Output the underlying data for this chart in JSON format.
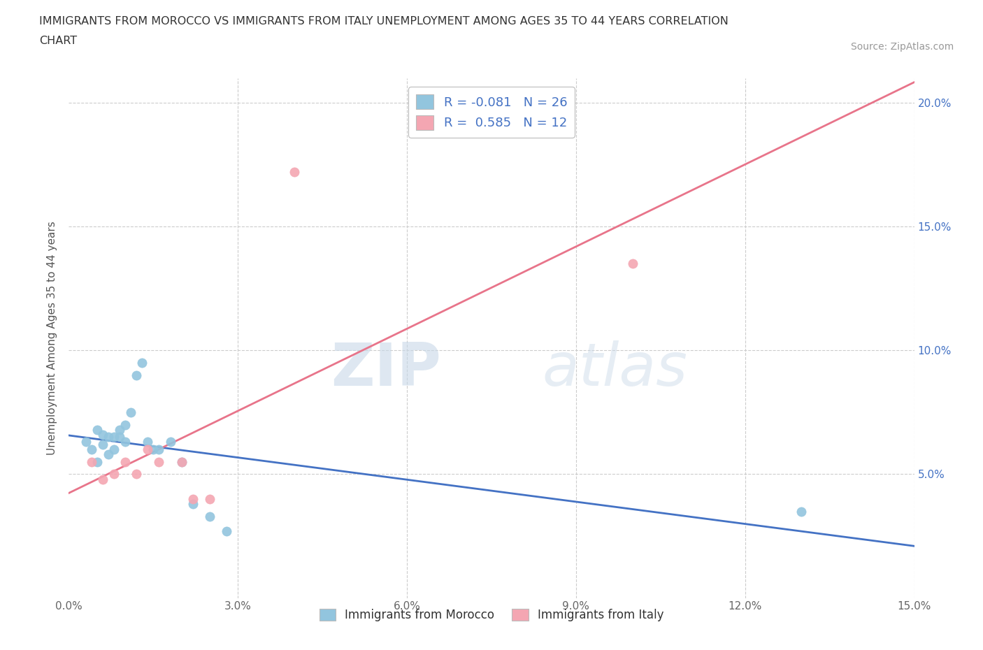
{
  "title_line1": "IMMIGRANTS FROM MOROCCO VS IMMIGRANTS FROM ITALY UNEMPLOYMENT AMONG AGES 35 TO 44 YEARS CORRELATION",
  "title_line2": "CHART",
  "source": "Source: ZipAtlas.com",
  "ylabel": "Unemployment Among Ages 35 to 44 years",
  "xlim": [
    0.0,
    0.15
  ],
  "ylim": [
    0.0,
    0.21
  ],
  "xticks": [
    0.0,
    0.03,
    0.06,
    0.09,
    0.12,
    0.15
  ],
  "yticks": [
    0.0,
    0.05,
    0.1,
    0.15,
    0.2
  ],
  "xtick_labels": [
    "0.0%",
    "3.0%",
    "6.0%",
    "9.0%",
    "12.0%",
    "15.0%"
  ],
  "ytick_labels_right": [
    "",
    "5.0%",
    "10.0%",
    "15.0%",
    "20.0%"
  ],
  "morocco_x": [
    0.003,
    0.004,
    0.005,
    0.005,
    0.006,
    0.006,
    0.007,
    0.007,
    0.008,
    0.008,
    0.009,
    0.009,
    0.01,
    0.01,
    0.011,
    0.012,
    0.013,
    0.014,
    0.015,
    0.016,
    0.018,
    0.02,
    0.022,
    0.025,
    0.028,
    0.13
  ],
  "morocco_y": [
    0.063,
    0.06,
    0.068,
    0.055,
    0.066,
    0.062,
    0.065,
    0.058,
    0.065,
    0.06,
    0.068,
    0.065,
    0.07,
    0.063,
    0.075,
    0.09,
    0.095,
    0.063,
    0.06,
    0.06,
    0.063,
    0.055,
    0.038,
    0.033,
    0.027,
    0.035
  ],
  "italy_x": [
    0.004,
    0.006,
    0.008,
    0.01,
    0.012,
    0.014,
    0.016,
    0.02,
    0.022,
    0.025,
    0.04,
    0.1
  ],
  "italy_y": [
    0.055,
    0.048,
    0.05,
    0.055,
    0.05,
    0.06,
    0.055,
    0.055,
    0.04,
    0.04,
    0.172,
    0.135
  ],
  "morocco_color": "#92C5DE",
  "italy_color": "#F4A6B2",
  "morocco_line_color": "#4472C4",
  "italy_line_color": "#E8748A",
  "morocco_R": -0.081,
  "morocco_N": 26,
  "italy_R": 0.585,
  "italy_N": 12,
  "watermark_zip": "ZIP",
  "watermark_atlas": "atlas",
  "background_color": "#ffffff",
  "grid_color": "#cccccc"
}
